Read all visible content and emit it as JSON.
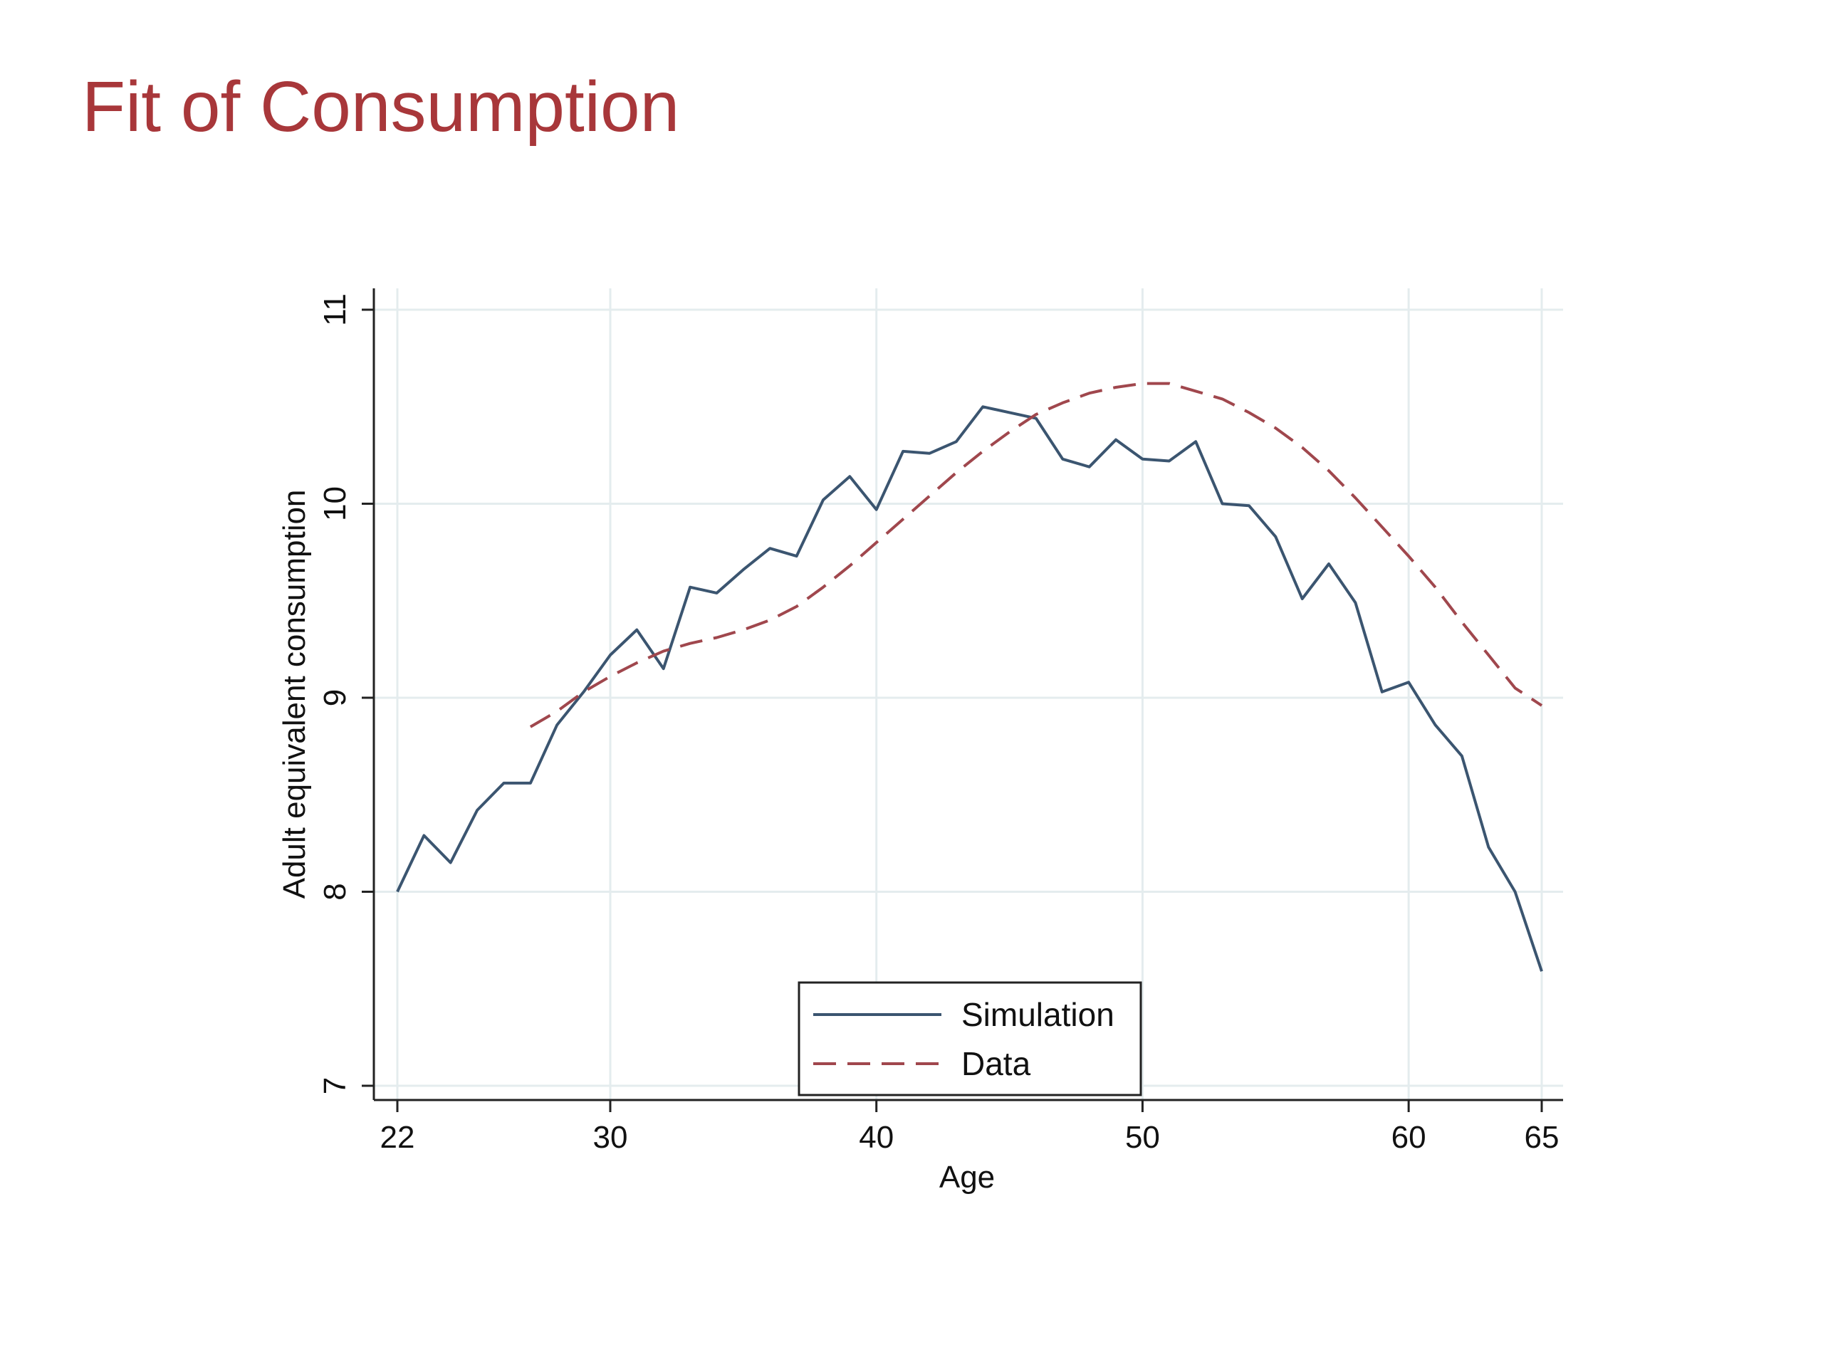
{
  "slide": {
    "title": "Fit of Consumption",
    "title_color": "#A8373A"
  },
  "chart_data": {
    "type": "line",
    "title": "",
    "xlabel": "Age",
    "ylabel": "Adult equivalent consumption",
    "xlim": [
      22,
      65
    ],
    "ylim": [
      7,
      11
    ],
    "xticks": [
      22,
      30,
      40,
      50,
      60,
      65
    ],
    "yticks": [
      7,
      8,
      9,
      10,
      11
    ],
    "grid": true,
    "legend_position": "bottom-center",
    "series": [
      {
        "name": "Simulation",
        "style": "solid",
        "color": "#3B5570",
        "x": [
          22,
          23,
          24,
          25,
          26,
          27,
          28,
          29,
          30,
          31,
          32,
          33,
          34,
          35,
          36,
          37,
          38,
          39,
          40,
          41,
          42,
          43,
          44,
          45,
          46,
          47,
          48,
          49,
          50,
          51,
          52,
          53,
          54,
          55,
          56,
          57,
          58,
          59,
          60,
          61,
          62,
          63,
          64,
          65
        ],
        "y": [
          8.0,
          8.29,
          8.15,
          8.42,
          8.56,
          8.56,
          8.86,
          9.03,
          9.22,
          9.35,
          9.15,
          9.57,
          9.54,
          9.66,
          9.77,
          9.73,
          10.02,
          10.14,
          9.97,
          10.27,
          10.26,
          10.32,
          10.5,
          10.47,
          10.44,
          10.23,
          10.19,
          10.33,
          10.23,
          10.22,
          10.32,
          10.0,
          9.99,
          9.83,
          9.51,
          9.69,
          9.49,
          9.03,
          9.08,
          8.86,
          8.7,
          8.23,
          8.0,
          7.59
        ]
      },
      {
        "name": "Data",
        "style": "dashed",
        "color": "#A0474D",
        "x": [
          27,
          28,
          29,
          30,
          31,
          32,
          33,
          34,
          35,
          36,
          37,
          38,
          39,
          40,
          41,
          42,
          43,
          44,
          45,
          46,
          47,
          48,
          49,
          50,
          51,
          52,
          53,
          54,
          55,
          56,
          57,
          58,
          59,
          60,
          61,
          62,
          63,
          64,
          65
        ],
        "y": [
          8.85,
          8.93,
          9.03,
          9.11,
          9.18,
          9.24,
          9.28,
          9.31,
          9.35,
          9.4,
          9.47,
          9.57,
          9.68,
          9.8,
          9.92,
          10.04,
          10.16,
          10.27,
          10.37,
          10.46,
          10.52,
          10.57,
          10.6,
          10.62,
          10.62,
          10.58,
          10.54,
          10.47,
          10.39,
          10.29,
          10.17,
          10.03,
          9.88,
          9.73,
          9.57,
          9.39,
          9.22,
          9.05,
          8.96
        ]
      }
    ]
  }
}
